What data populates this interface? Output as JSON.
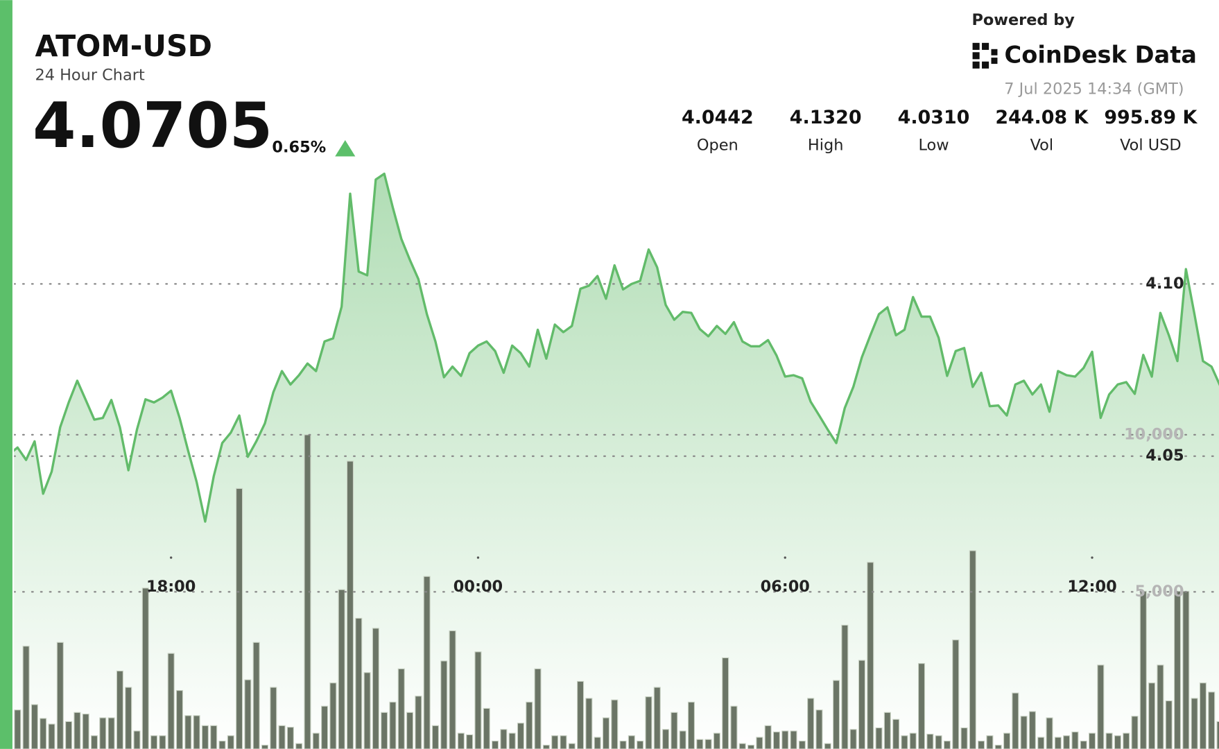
{
  "header": {
    "price": "4.0705",
    "change": "0.65%",
    "powered_by": "Powered by",
    "brand": "CoinDesk Data",
    "timestamp": "7 Jul 2025 14:34 (GMT)",
    "stats": [
      {
        "value": "4.0442",
        "label": "Open"
      },
      {
        "value": "4.1320",
        "label": "High"
      },
      {
        "value": "4.0310",
        "label": "Low"
      },
      {
        "value": "244.08 K",
        "label": "Vol"
      },
      {
        "value": "995.89 K",
        "label": "Vol USD"
      }
    ]
  },
  "chart_data": {
    "type": "line",
    "title": "ATOM-USD",
    "subtitle": "24 Hour Chart",
    "categories": [
      null,
      null,
      null,
      null,
      null,
      null,
      null,
      null,
      null,
      null,
      null,
      null,
      null,
      null,
      null,
      null,
      null,
      null,
      null,
      "18:00",
      null,
      null,
      null,
      null,
      null,
      null,
      null,
      null,
      null,
      null,
      null,
      null,
      null,
      null,
      null,
      null,
      null,
      null,
      null,
      null,
      null,
      null,
      null,
      null,
      null,
      null,
      null,
      null,
      null,
      null,
      null,
      null,
      null,
      null,
      null,
      "00:00",
      null,
      null,
      null,
      null,
      null,
      null,
      null,
      null,
      null,
      null,
      null,
      null,
      null,
      null,
      null,
      null,
      null,
      null,
      null,
      null,
      null,
      null,
      null,
      null,
      null,
      null,
      null,
      null,
      null,
      null,
      null,
      null,
      null,
      null,
      null,
      "06:00",
      null,
      null,
      null,
      null,
      null,
      null,
      null,
      null,
      null,
      null,
      null,
      null,
      null,
      null,
      null,
      null,
      null,
      null,
      null,
      null,
      null,
      null,
      null,
      null,
      null,
      null,
      null,
      null,
      null,
      null,
      null,
      null,
      null,
      null,
      null,
      "12:00",
      null,
      null,
      null,
      null,
      null,
      null,
      null,
      null,
      null,
      null,
      null,
      null,
      null,
      null,
      null
    ],
    "series": [
      {
        "color": "#62bb6a",
        "values": [
          4.0505,
          4.0525,
          4.0489,
          4.0543,
          4.0391,
          4.0455,
          4.0584,
          4.0656,
          4.0719,
          4.0663,
          4.0606,
          4.0611,
          4.0663,
          4.0584,
          4.0459,
          4.0577,
          4.0665,
          4.0656,
          4.067,
          4.069,
          4.0611,
          4.0516,
          4.0425,
          4.031,
          4.0441,
          4.0538,
          4.0568,
          4.0618,
          4.0498,
          4.0543,
          4.0595,
          4.0686,
          4.0747,
          4.0708,
          4.0735,
          4.0769,
          4.0747,
          4.0833,
          4.0842,
          4.0934,
          4.1262,
          4.1036,
          4.1025,
          4.1303,
          4.132,
          4.1222,
          4.1131,
          4.107,
          4.1014,
          4.0912,
          4.0833,
          4.0729,
          4.076,
          4.0733,
          4.0799,
          4.0821,
          4.0833,
          4.0805,
          4.0742,
          4.0821,
          4.0799,
          4.076,
          4.0867,
          4.0783,
          4.0882,
          4.086,
          4.0878,
          4.0986,
          4.0995,
          4.1023,
          4.0957,
          4.1054,
          4.0984,
          4.1,
          4.1009,
          4.11,
          4.1048,
          4.0939,
          4.0896,
          4.0919,
          4.0916,
          4.0869,
          4.0848,
          4.0878,
          4.0855,
          4.0889,
          4.0833,
          4.0819,
          4.0819,
          4.0837,
          4.0792,
          4.0731,
          4.0735,
          4.0726,
          4.0658,
          4.0618,
          4.0577,
          4.0538,
          4.064,
          4.0701,
          4.0787,
          4.0851,
          4.0912,
          4.0932,
          4.0851,
          4.0867,
          4.0962,
          4.0905,
          4.0905,
          4.0844,
          4.0733,
          4.0805,
          4.0814,
          4.0701,
          4.0742,
          4.0645,
          4.0647,
          4.0618,
          4.0708,
          4.0719,
          4.0679,
          4.0708,
          4.0629,
          4.0747,
          4.0735,
          4.0731,
          4.0756,
          4.0803,
          4.0611,
          4.0679,
          4.0708,
          4.0715,
          4.0681,
          4.0794,
          4.0731,
          4.0916,
          4.0851,
          4.0776,
          4.1043,
          4.0912,
          4.0776,
          4.076,
          4.0705
        ]
      },
      {
        "type": "bar",
        "axis": "y2",
        "color": "#6b7566",
        "values": [
          1110,
          1240,
          3270,
          1410,
          970,
          790,
          3390,
          870,
          1160,
          1110,
          420,
          990,
          990,
          2480,
          1960,
          570,
          5120,
          420,
          420,
          3040,
          1860,
          1060,
          1060,
          740,
          740,
          250,
          420,
          8290,
          2200,
          3390,
          120,
          1960,
          740,
          690,
          170,
          10000,
          500,
          1360,
          2100,
          5070,
          9160,
          4160,
          2430,
          3840,
          1160,
          1490,
          2550,
          1160,
          1680,
          5490,
          740,
          2800,
          3760,
          500,
          450,
          3090,
          1290,
          250,
          620,
          500,
          820,
          1490,
          2550,
          120,
          420,
          420,
          170,
          2150,
          1610,
          370,
          990,
          1560,
          250,
          420,
          250,
          1660,
          1960,
          620,
          1160,
          570,
          1490,
          300,
          300,
          500,
          2900,
          1360,
          170,
          120,
          370,
          740,
          540,
          570,
          570,
          250,
          1610,
          1240,
          170,
          2180,
          3940,
          620,
          2820,
          5940,
          670,
          1160,
          940,
          420,
          500,
          2720,
          470,
          420,
          250,
          3470,
          670,
          6310,
          250,
          420,
          120,
          500,
          1780,
          1040,
          1190,
          370,
          990,
          370,
          420,
          540,
          250,
          500,
          2670,
          500,
          420,
          500,
          1040,
          5020,
          2100,
          2670,
          1530,
          5020,
          5020,
          1610,
          2100,
          1810,
          870
        ]
      }
    ],
    "ylim": [
      3.965,
      4.135
    ],
    "yticks": [
      {
        "value": 4.1,
        "label": "4.10"
      },
      4.05
    ],
    "y2lim": [
      0,
      18640
    ],
    "y2ticks": [
      {
        "value": 10000,
        "label": "10,000"
      },
      {
        "value": 5000,
        "label": "5,000"
      }
    ],
    "grid": true
  }
}
